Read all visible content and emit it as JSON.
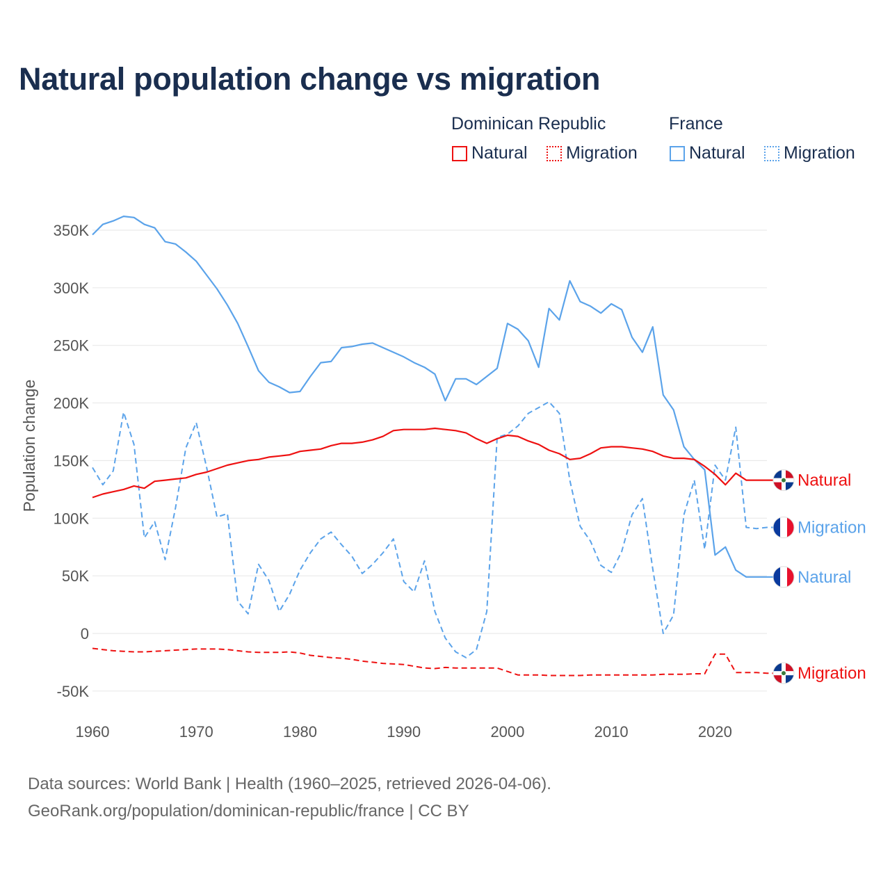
{
  "title": "Natural population change vs migration",
  "legend": {
    "groups": [
      {
        "name": "Dominican Republic",
        "items": [
          "Natural",
          "Migration"
        ]
      },
      {
        "name": "France",
        "items": [
          "Natural",
          "Migration"
        ]
      }
    ]
  },
  "source": {
    "line1": "Data sources: World Bank | Health (1960–2025, retrieved 2026-04-06).",
    "line2": "GeoRank.org/population/dominican-republic/france | CC BY"
  },
  "chart_data": {
    "type": "line",
    "title": "Natural population change vs migration",
    "xlabel": "",
    "ylabel": "Population change",
    "xlim": [
      1960,
      2025
    ],
    "ylim": [
      -50000,
      350000
    ],
    "x_ticks": [
      "1960",
      "1970",
      "1980",
      "1990",
      "2000",
      "2010",
      "2020"
    ],
    "y_ticks": [
      {
        "value": -50000,
        "label": "-50K"
      },
      {
        "value": 0,
        "label": "0"
      },
      {
        "value": 50000,
        "label": "50K"
      },
      {
        "value": 100000,
        "label": "100K"
      },
      {
        "value": 150000,
        "label": "150K"
      },
      {
        "value": 200000,
        "label": "200K"
      },
      {
        "value": 250000,
        "label": "250K"
      },
      {
        "value": 300000,
        "label": "300K"
      },
      {
        "value": 350000,
        "label": "350K"
      }
    ],
    "grid": true,
    "x_start": 1960,
    "units": "thousands",
    "series": [
      {
        "name": "France Natural",
        "country": "France",
        "end_label": "Natural",
        "color": "#5ba3ea",
        "dash": false,
        "flag": "fr",
        "values": [
          346,
          355,
          358,
          362,
          361,
          355,
          352,
          340,
          338,
          331,
          323,
          311,
          299,
          285,
          269,
          249,
          228,
          218,
          214,
          209,
          210,
          223,
          235,
          236,
          248,
          249,
          251,
          252,
          248,
          244,
          240,
          235,
          231,
          225,
          202,
          221,
          221,
          216,
          223,
          230,
          269,
          264,
          254,
          231,
          282,
          272,
          306,
          288,
          284,
          278,
          286,
          281,
          257,
          244,
          266,
          207,
          194,
          162,
          151,
          142,
          68,
          75,
          55,
          49,
          49,
          49
        ]
      },
      {
        "name": "France Migration",
        "country": "France",
        "end_label": "Migration",
        "color": "#5ba3ea",
        "dash": true,
        "flag": "fr",
        "values": [
          144,
          129,
          141,
          192,
          164,
          83,
          97,
          64,
          109,
          161,
          183,
          144,
          101,
          104,
          28,
          17,
          60,
          46,
          19,
          34,
          55,
          70,
          82,
          88,
          77,
          67,
          52,
          60,
          70,
          82,
          45,
          36,
          63,
          19,
          -4,
          -16,
          -21,
          -14,
          19,
          170,
          173,
          180,
          191,
          196,
          201,
          191,
          133,
          93,
          80,
          59,
          53,
          71,
          103,
          117,
          56,
          0,
          16,
          103,
          133,
          73,
          146,
          133,
          179,
          92,
          91,
          92
        ]
      },
      {
        "name": "Dominican Republic Natural",
        "country": "Dominican Republic",
        "end_label": "Natural",
        "color": "#ee1111",
        "dash": false,
        "flag": "do",
        "values": [
          118,
          121,
          123,
          125,
          128,
          126,
          132,
          133,
          134,
          135,
          138,
          140,
          143,
          146,
          148,
          150,
          151,
          153,
          154,
          155,
          158,
          159,
          160,
          163,
          165,
          165,
          166,
          168,
          171,
          176,
          177,
          177,
          177,
          178,
          177,
          176,
          174,
          169,
          165,
          169,
          172,
          171,
          167,
          164,
          159,
          156,
          151,
          152,
          156,
          161,
          162,
          162,
          161,
          160,
          158,
          154,
          152,
          152,
          151,
          145,
          138,
          129,
          139,
          133,
          133,
          133
        ]
      },
      {
        "name": "Dominican Republic Migration",
        "country": "Dominican Republic",
        "end_label": "Migration",
        "color": "#ee1111",
        "dash": true,
        "flag": "do",
        "values": [
          -13,
          -14,
          -15,
          -15.5,
          -16,
          -16,
          -15.5,
          -15,
          -14.5,
          -14,
          -13.5,
          -13.5,
          -13.5,
          -14,
          -15,
          -16,
          -16.5,
          -16.5,
          -16.5,
          -16,
          -17,
          -19,
          -20,
          -21,
          -21.5,
          -22.5,
          -24,
          -25,
          -26,
          -26.5,
          -27,
          -28.5,
          -30,
          -30.5,
          -29.5,
          -30,
          -30,
          -30,
          -30,
          -30,
          -33,
          -36,
          -36,
          -36,
          -36.5,
          -36.5,
          -36.5,
          -36.5,
          -36,
          -36,
          -36,
          -36,
          -36,
          -36,
          -36,
          -35.5,
          -35.5,
          -35.5,
          -35,
          -35,
          -18,
          -18,
          -34,
          -34,
          -34,
          -34.5
        ]
      }
    ]
  }
}
